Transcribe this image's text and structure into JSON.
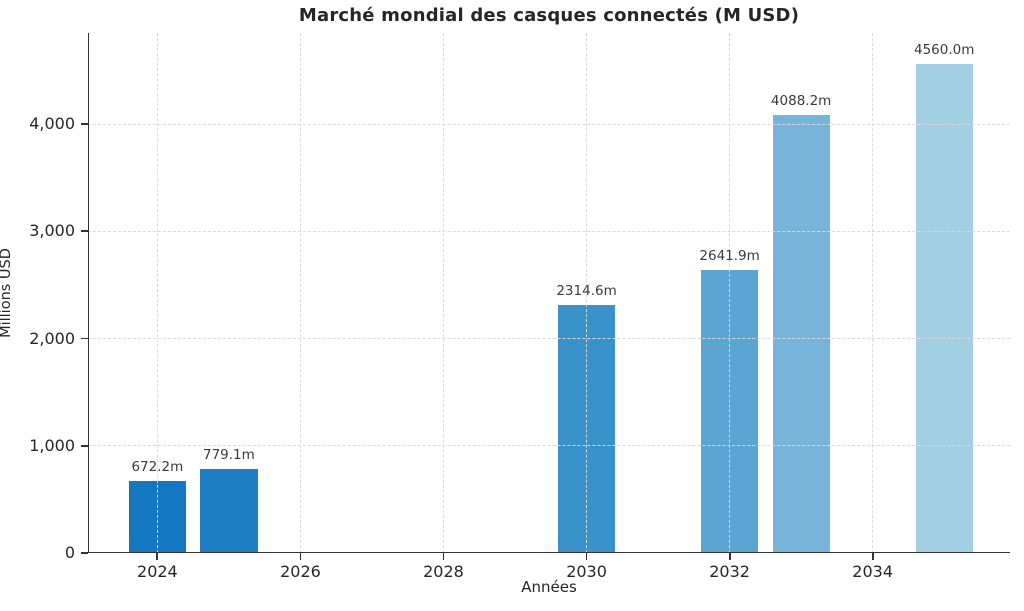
{
  "chart_data": {
    "type": "bar",
    "title": "Marché mondial des casques connectés (M USD)",
    "xlabel": "Années",
    "ylabel": "Millions USD",
    "x": [
      2024,
      2025,
      2030,
      2032,
      2033,
      2035
    ],
    "values": [
      672.2,
      779.1,
      2314.6,
      2641.9,
      4088.2,
      4560.0
    ],
    "value_labels": [
      "672.2m",
      "779.1m",
      "2314.6m",
      "2641.9m",
      "4088.2m",
      "4560.0m"
    ],
    "bar_colors": [
      "#1377c1",
      "#1f7fc4",
      "#3b92ca",
      "#5ba5d2",
      "#76b4d9",
      "#a3cfe3"
    ],
    "bar_width_years": 0.8,
    "xlim": [
      2023.03,
      2035.92
    ],
    "ylim": [
      0,
      4850
    ],
    "xticks": [
      {
        "value": 2024,
        "label": "2024"
      },
      {
        "value": 2026,
        "label": "2026"
      },
      {
        "value": 2028,
        "label": "2028"
      },
      {
        "value": 2030,
        "label": "2030"
      },
      {
        "value": 2032,
        "label": "2032"
      },
      {
        "value": 2034,
        "label": "2034"
      }
    ],
    "yticks": [
      {
        "value": 0,
        "label": "0"
      },
      {
        "value": 1000,
        "label": "1,000"
      },
      {
        "value": 2000,
        "label": "2,000"
      },
      {
        "value": 3000,
        "label": "3,000"
      },
      {
        "value": 4000,
        "label": "4,000"
      }
    ],
    "grid": "dashed, drawn above bars",
    "grid_color": "#d9d9d9",
    "axis_color": "#333333",
    "text_color": "#262626",
    "background_color": "#ffffff",
    "legend": "none"
  }
}
